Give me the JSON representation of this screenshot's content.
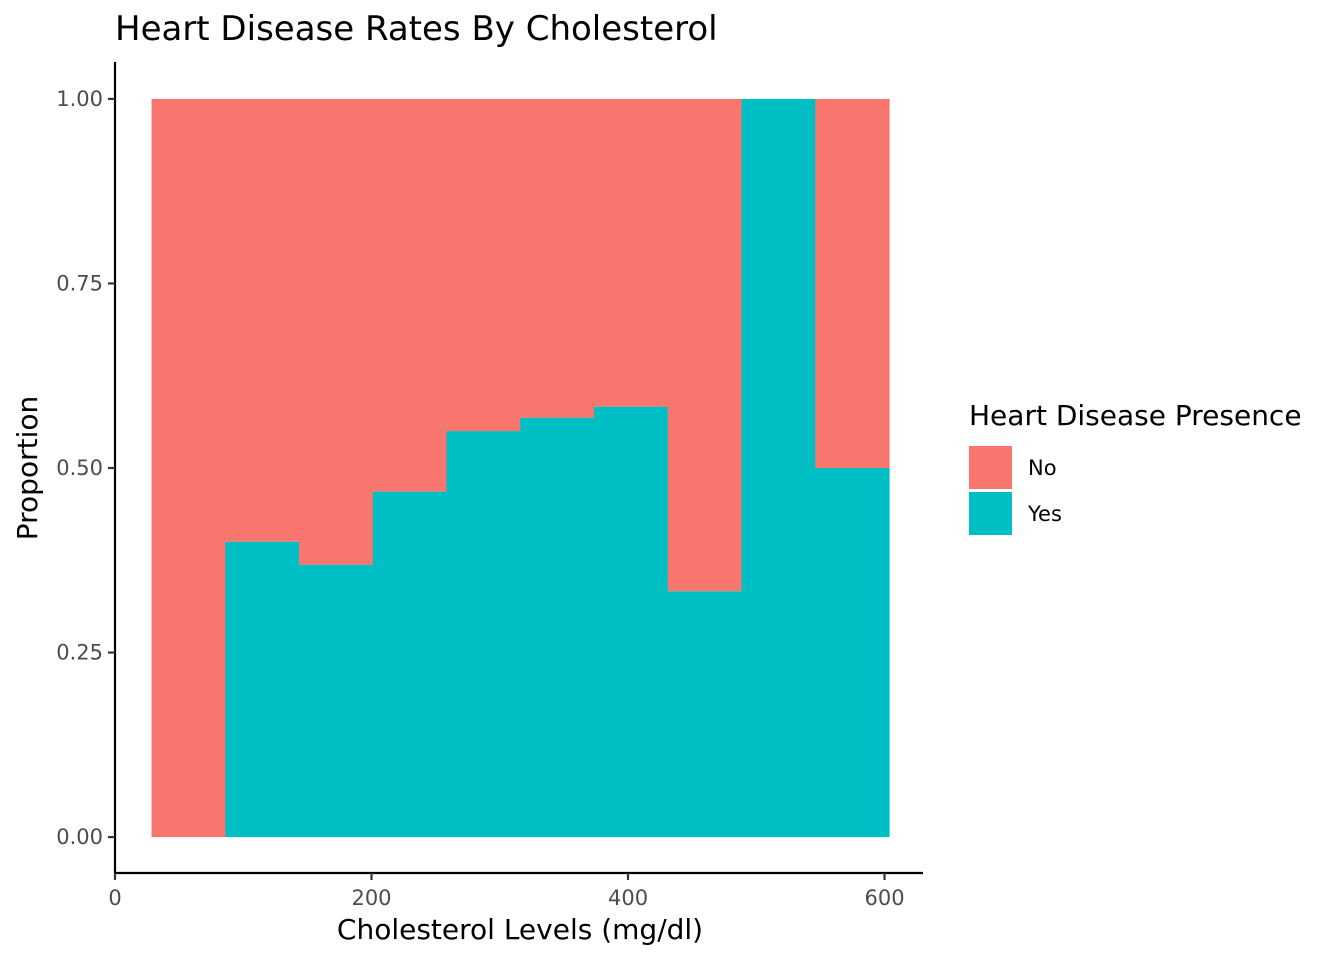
{
  "chart_data": {
    "type": "bar",
    "subtype": "stacked-proportion-histogram",
    "title": "Heart Disease Rates By Cholesterol",
    "xlabel": "Cholesterol Levels (mg/dl)",
    "ylabel": "Proportion",
    "xlim": [
      0,
      630
    ],
    "ylim": [
      -0.05,
      1.05
    ],
    "xticks": [
      0,
      200,
      400,
      600
    ],
    "xtick_labels": [
      "0",
      "200",
      "400",
      "600"
    ],
    "yticks": [
      0,
      0.25,
      0.5,
      0.75,
      1.0
    ],
    "ytick_labels": [
      "0.00",
      "0.25",
      "0.50",
      "0.75",
      "1.00"
    ],
    "bins": [
      {
        "x0": 28.5,
        "x1": 86.0,
        "yes": 0.0
      },
      {
        "x0": 86.0,
        "x1": 143.5,
        "yes": 0.4
      },
      {
        "x0": 143.5,
        "x1": 201.0,
        "yes": 0.369
      },
      {
        "x0": 201.0,
        "x1": 258.5,
        "yes": 0.468
      },
      {
        "x0": 258.5,
        "x1": 316.0,
        "yes": 0.55
      },
      {
        "x0": 316.0,
        "x1": 373.5,
        "yes": 0.568
      },
      {
        "x0": 373.5,
        "x1": 431.0,
        "yes": 0.583
      },
      {
        "x0": 431.0,
        "x1": 488.5,
        "yes": 0.333
      },
      {
        "x0": 488.5,
        "x1": 546.0,
        "yes": 1.0
      },
      {
        "x0": 546.0,
        "x1": 603.5,
        "yes": 0.5
      }
    ],
    "legend": {
      "title": "Heart Disease Presence",
      "position": "right",
      "entries": [
        {
          "name": "No",
          "color": "#F8766D"
        },
        {
          "name": "Yes",
          "color": "#00BFC4"
        }
      ]
    },
    "grid": false
  }
}
